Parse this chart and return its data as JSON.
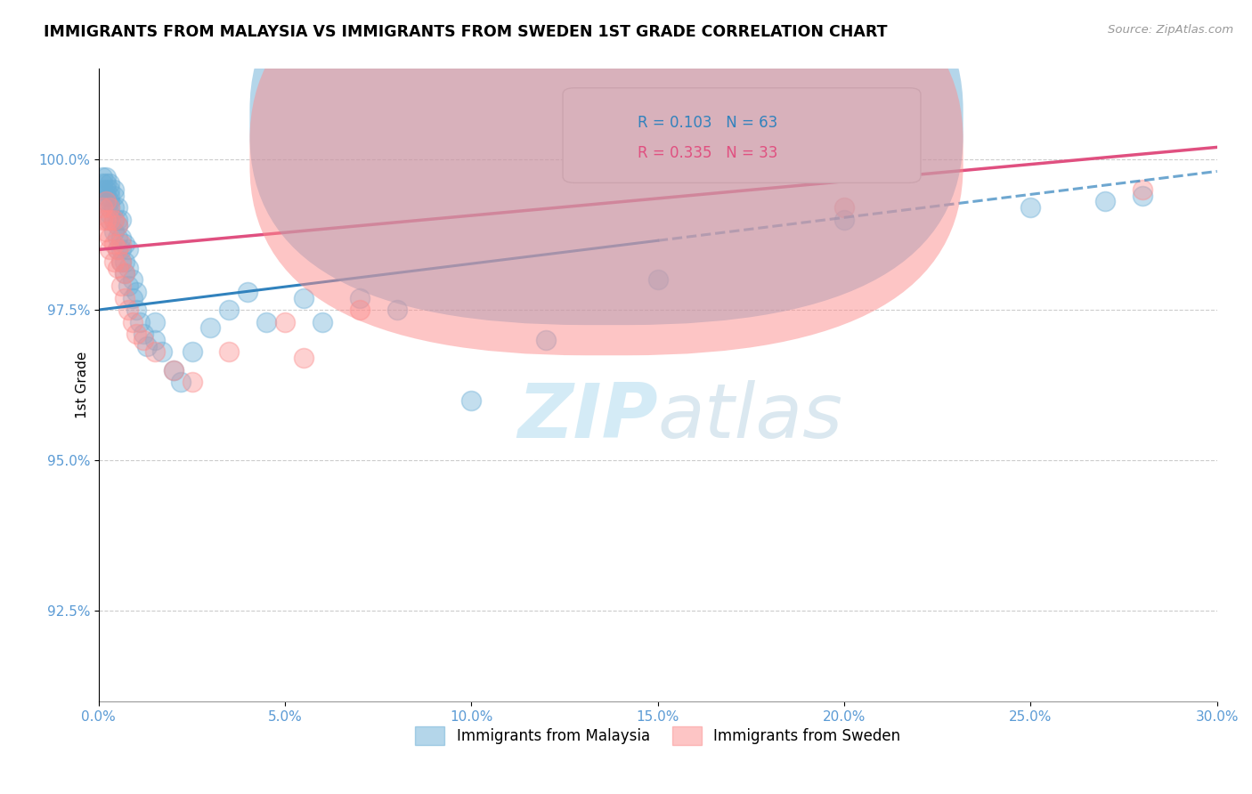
{
  "title": "IMMIGRANTS FROM MALAYSIA VS IMMIGRANTS FROM SWEDEN 1ST GRADE CORRELATION CHART",
  "source_text": "Source: ZipAtlas.com",
  "ylabel": "1st Grade",
  "legend_labels": [
    "Immigrants from Malaysia",
    "Immigrants from Sweden"
  ],
  "r_malaysia": 0.103,
  "n_malaysia": 63,
  "r_sweden": 0.335,
  "n_sweden": 33,
  "xlim": [
    0.0,
    30.0
  ],
  "ylim": [
    91.0,
    101.5
  ],
  "yticks": [
    92.5,
    95.0,
    97.5,
    100.0
  ],
  "ytick_labels": [
    "92.5%",
    "95.0%",
    "97.5%",
    "100.0%"
  ],
  "xticks": [
    0.0,
    5.0,
    10.0,
    15.0,
    20.0,
    25.0,
    30.0
  ],
  "xtick_labels": [
    "0.0%",
    "5.0%",
    "10.0%",
    "15.0%",
    "20.0%",
    "25.0%",
    "30.0%"
  ],
  "color_malaysia": "#6baed6",
  "color_sweden": "#fc8d8d",
  "color_malaysia_line": "#3182bd",
  "color_sweden_line": "#e05080",
  "color_axis_labels": "#5b9bd5",
  "watermark_color": "#cde8f5",
  "malaysia_x": [
    0.1,
    0.1,
    0.1,
    0.2,
    0.2,
    0.2,
    0.2,
    0.2,
    0.3,
    0.3,
    0.3,
    0.3,
    0.3,
    0.3,
    0.3,
    0.4,
    0.4,
    0.4,
    0.4,
    0.4,
    0.5,
    0.5,
    0.5,
    0.5,
    0.5,
    0.6,
    0.6,
    0.6,
    0.6,
    0.7,
    0.7,
    0.7,
    0.8,
    0.8,
    0.8,
    0.9,
    0.9,
    1.0,
    1.0,
    1.1,
    1.2,
    1.3,
    1.5,
    1.5,
    1.7,
    2.0,
    2.2,
    2.5,
    3.0,
    3.5,
    4.0,
    4.5,
    5.5,
    6.0,
    7.0,
    8.0,
    10.0,
    12.0,
    15.0,
    20.0,
    25.0,
    27.0,
    28.0
  ],
  "malaysia_y": [
    99.5,
    99.6,
    99.7,
    99.3,
    99.4,
    99.5,
    99.6,
    99.7,
    99.0,
    99.1,
    99.2,
    99.3,
    99.4,
    99.5,
    99.6,
    98.8,
    99.0,
    99.2,
    99.4,
    99.5,
    98.5,
    98.7,
    98.9,
    99.0,
    99.2,
    98.3,
    98.5,
    98.7,
    99.0,
    98.1,
    98.3,
    98.6,
    97.9,
    98.2,
    98.5,
    97.7,
    98.0,
    97.5,
    97.8,
    97.3,
    97.1,
    96.9,
    97.3,
    97.0,
    96.8,
    96.5,
    96.3,
    96.8,
    97.2,
    97.5,
    97.8,
    97.3,
    97.7,
    97.3,
    97.7,
    97.5,
    96.0,
    97.0,
    98.0,
    99.0,
    99.2,
    99.3,
    99.4
  ],
  "sweden_x": [
    0.1,
    0.1,
    0.2,
    0.2,
    0.2,
    0.3,
    0.3,
    0.3,
    0.3,
    0.4,
    0.4,
    0.4,
    0.5,
    0.5,
    0.5,
    0.6,
    0.6,
    0.6,
    0.7,
    0.7,
    0.8,
    0.9,
    1.0,
    1.2,
    1.5,
    2.0,
    2.5,
    3.5,
    5.0,
    5.5,
    7.0,
    20.0,
    28.0
  ],
  "sweden_y": [
    99.0,
    99.2,
    98.8,
    99.0,
    99.3,
    98.5,
    98.7,
    99.0,
    99.2,
    98.3,
    98.6,
    99.0,
    98.2,
    98.5,
    98.9,
    97.9,
    98.3,
    98.6,
    97.7,
    98.1,
    97.5,
    97.3,
    97.1,
    97.0,
    96.8,
    96.5,
    96.3,
    96.8,
    97.3,
    96.7,
    97.5,
    99.2,
    99.5
  ],
  "malaysia_trendline_x": [
    0.0,
    30.0
  ],
  "malaysia_trendline_y": [
    97.5,
    99.8
  ],
  "malaysia_solid_end_x": 15.0,
  "sweden_trendline_x": [
    0.0,
    30.0
  ],
  "sweden_trendline_y": [
    98.5,
    100.2
  ]
}
